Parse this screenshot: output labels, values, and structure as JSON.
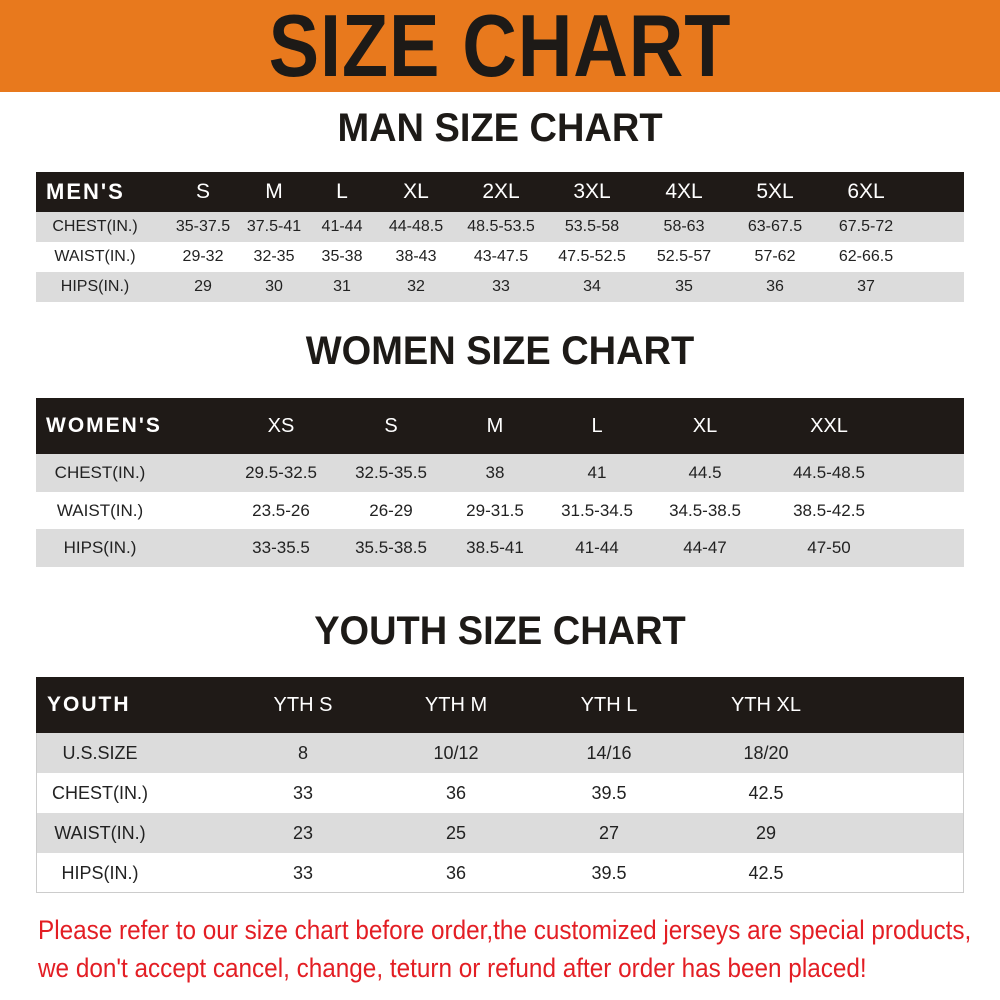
{
  "banner": {
    "title": "SIZE CHART",
    "color": "#E8791D"
  },
  "men": {
    "title": "MAN SIZE CHART",
    "header": [
      "MEN'S",
      "S",
      "M",
      "L",
      "XL",
      "2XL",
      "3XL",
      "4XL",
      "5XL",
      "6XL"
    ],
    "rows": [
      [
        "CHEST(IN.)",
        "35-37.5",
        "37.5-41",
        "41-44",
        "44-48.5",
        "48.5-53.5",
        "53.5-58",
        "58-63",
        "63-67.5",
        "67.5-72"
      ],
      [
        "WAIST(IN.)",
        "29-32",
        "32-35",
        "35-38",
        "38-43",
        "43-47.5",
        "47.5-52.5",
        "52.5-57",
        "57-62",
        "62-66.5"
      ],
      [
        "HIPS(IN.)",
        "29",
        "30",
        "31",
        "32",
        "33",
        "34",
        "35",
        "36",
        "37"
      ]
    ]
  },
  "women": {
    "title": "WOMEN SIZE CHART",
    "header": [
      "WOMEN'S",
      "XS",
      "S",
      "M",
      "L",
      "XL",
      "XXL"
    ],
    "rows": [
      [
        "CHEST(IN.)",
        "29.5-32.5",
        "32.5-35.5",
        "38",
        "41",
        "44.5",
        "44.5-48.5"
      ],
      [
        "WAIST(IN.)",
        "23.5-26",
        "26-29",
        "29-31.5",
        "31.5-34.5",
        "34.5-38.5",
        "38.5-42.5"
      ],
      [
        "HIPS(IN.)",
        "33-35.5",
        "35.5-38.5",
        "38.5-41",
        "41-44",
        "44-47",
        "47-50"
      ]
    ]
  },
  "youth": {
    "title": "YOUTH SIZE CHART",
    "header": [
      "YOUTH",
      "YTH S",
      "YTH M",
      "YTH L",
      "YTH XL"
    ],
    "rows": [
      [
        "U.S.SIZE",
        "8",
        "10/12",
        "14/16",
        "18/20"
      ],
      [
        "CHEST(IN.)",
        "33",
        "36",
        "39.5",
        "42.5"
      ],
      [
        "WAIST(IN.)",
        "23",
        "25",
        "27",
        "29"
      ],
      [
        "HIPS(IN.)",
        "33",
        "36",
        "39.5",
        "42.5"
      ]
    ]
  },
  "notice": {
    "line1": "Please refer to our size chart before order,the customized jerseys are special products,",
    "line2": "we don't accept cancel, change, teturn or refund after order has been placed!",
    "color": "#e31e24"
  }
}
